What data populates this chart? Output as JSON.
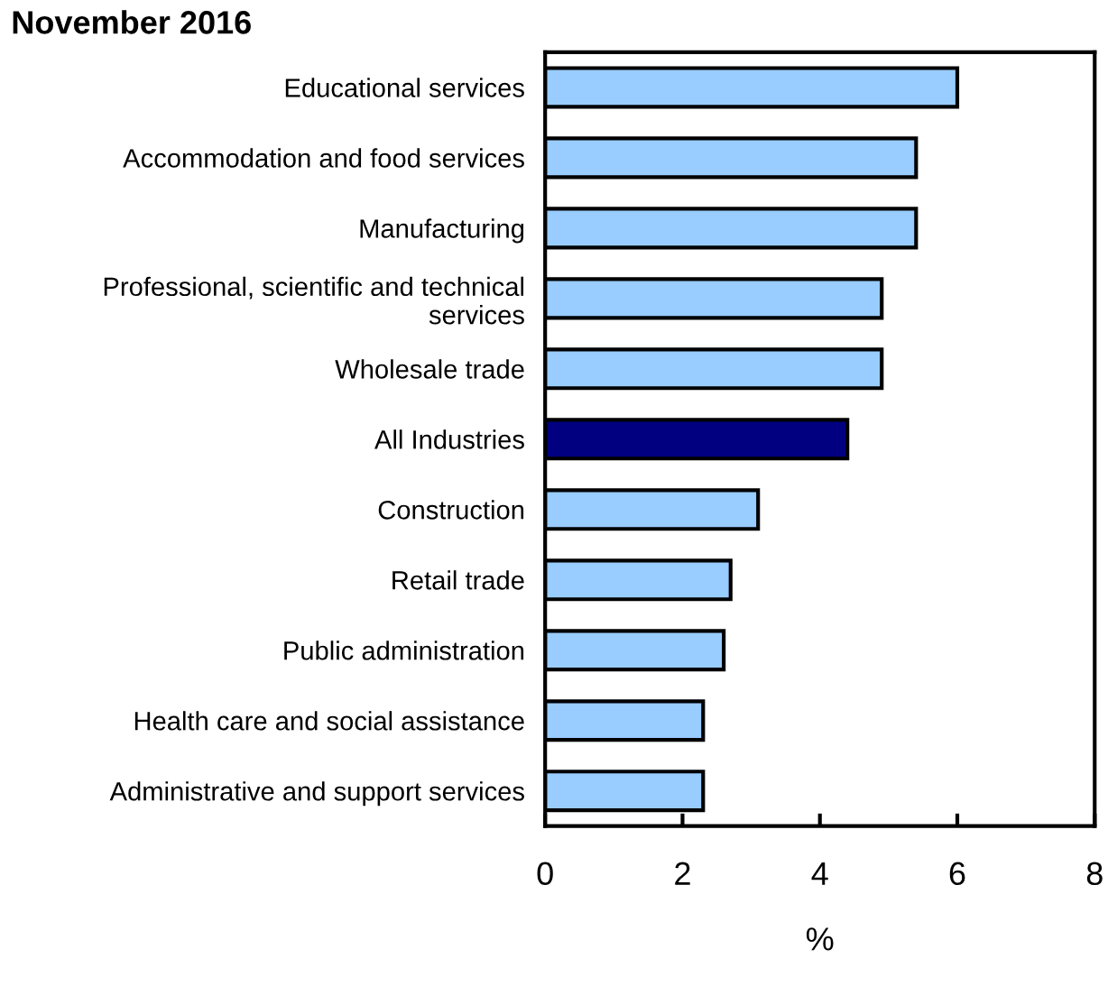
{
  "chart_data": {
    "type": "bar",
    "orientation": "horizontal",
    "title": "November 2016",
    "xlabel": "%",
    "categories": [
      "Educational services",
      "Accommodation and food services",
      "Manufacturing",
      "Professional, scientific and technical\nservices",
      "Wholesale trade",
      "All Industries",
      "Construction",
      "Retail trade",
      "Public administration",
      "Health care and social assistance",
      "Administrative and support services"
    ],
    "values": [
      6.0,
      5.4,
      5.4,
      4.9,
      4.9,
      4.4,
      3.1,
      2.7,
      2.6,
      2.3,
      2.3
    ],
    "colors": [
      "#99ccff",
      "#99ccff",
      "#99ccff",
      "#99ccff",
      "#99ccff",
      "#000080",
      "#99ccff",
      "#99ccff",
      "#99ccff",
      "#99ccff",
      "#99ccff"
    ],
    "xlim": [
      0,
      8
    ],
    "xticks": [
      0,
      2,
      4,
      6,
      8
    ],
    "grid": false,
    "legend": false
  }
}
